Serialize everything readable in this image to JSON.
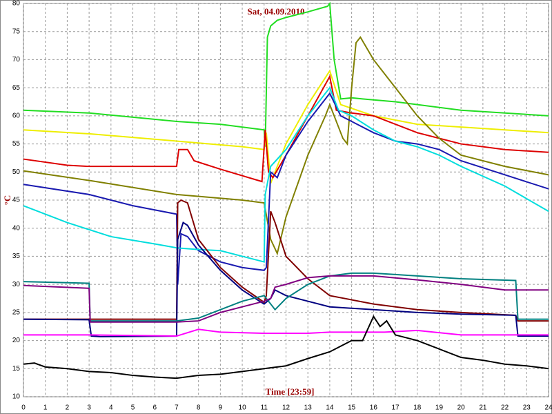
{
  "chart_data": {
    "type": "line",
    "title": "Sat, 04.09.2010",
    "x_label": "Time [23:59]",
    "y_label": "°C",
    "xlim": [
      0,
      24
    ],
    "ylim": [
      10,
      80
    ],
    "xticks": [
      0,
      1,
      2,
      3,
      4,
      5,
      6,
      7,
      8,
      9,
      10,
      11,
      12,
      13,
      14,
      15,
      16,
      17,
      18,
      19,
      20,
      21,
      22,
      23,
      24
    ],
    "yticks": [
      10,
      15,
      20,
      25,
      30,
      35,
      40,
      45,
      50,
      55,
      60,
      65,
      70,
      75,
      80
    ],
    "grid": true,
    "series": [
      {
        "color": "#22dd22",
        "x": [
          0,
          3,
          7,
          9,
          11,
          11.05,
          11.15,
          11.3,
          11.6,
          12,
          13,
          13.9,
          14,
          14.2,
          14.5,
          15,
          15.5,
          17,
          20,
          24
        ],
        "values": [
          61,
          60.5,
          59,
          58.5,
          57.5,
          54.5,
          74,
          76,
          77,
          77.5,
          78.5,
          79.5,
          80,
          70,
          63,
          63.2,
          63,
          62.5,
          61,
          60
        ]
      },
      {
        "color": "#eeee00",
        "x": [
          0,
          3,
          7,
          10,
          11,
          11.1,
          11.3,
          12,
          13,
          14,
          14.5,
          16,
          18,
          20,
          24
        ],
        "values": [
          57.5,
          56.8,
          55.5,
          54.5,
          54,
          57,
          48,
          55,
          62,
          68,
          62,
          60,
          58.5,
          58,
          57
        ]
      },
      {
        "color": "#dd0000",
        "x": [
          0,
          2,
          3,
          7,
          7.1,
          7.5,
          7.8,
          9,
          10.9,
          11.05,
          11.2,
          11.4,
          12,
          13,
          14,
          14.3,
          15,
          16,
          17,
          18,
          20,
          22,
          24
        ],
        "values": [
          52.3,
          51.2,
          51,
          51,
          54,
          54,
          52,
          50.5,
          48.3,
          57.5,
          50,
          49,
          53,
          60,
          67,
          61,
          60.5,
          60,
          58.5,
          57,
          55,
          54,
          53.5
        ]
      },
      {
        "color": "#808000",
        "x": [
          0,
          3,
          7,
          10,
          11,
          11.3,
          11.6,
          12,
          13,
          13.8,
          14,
          14.6,
          14.8,
          15,
          15.2,
          15.4,
          16,
          17,
          18,
          19,
          20,
          22,
          24
        ],
        "values": [
          50.2,
          48.5,
          46,
          45,
          44.5,
          38,
          35.5,
          42,
          53,
          60,
          62,
          56,
          55,
          65,
          73,
          74,
          70,
          65,
          60,
          56,
          53,
          51,
          49.5
        ]
      },
      {
        "color": "#1a1ab0",
        "x": [
          0,
          3,
          5,
          7,
          7.05,
          7.2,
          7.5,
          8,
          9,
          10,
          11,
          11.1,
          11.3,
          11.6,
          12,
          13,
          14,
          14.5,
          15,
          16,
          17,
          18,
          19,
          20,
          22,
          24
        ],
        "values": [
          47.8,
          46,
          44,
          42.5,
          30,
          39,
          38.5,
          36,
          34,
          33,
          32.5,
          33,
          50,
          49,
          53,
          59,
          64,
          60,
          59,
          57,
          55.5,
          55,
          54,
          52,
          49.5,
          47
        ]
      },
      {
        "color": "#00dddd",
        "x": [
          0,
          2,
          4,
          6,
          7,
          8,
          9,
          10,
          11,
          11.05,
          11.3,
          12,
          13,
          14,
          14.4,
          15,
          16,
          17,
          18,
          19,
          20,
          22,
          24
        ],
        "values": [
          44,
          41,
          38.5,
          37.2,
          36.5,
          36.2,
          36,
          35,
          34,
          46,
          51,
          54,
          60,
          65,
          61,
          60,
          57.5,
          55.5,
          54.5,
          53,
          51,
          47.5,
          43
        ]
      },
      {
        "color": "#800000",
        "x": [
          0,
          3,
          7,
          7.05,
          7.2,
          7.5,
          8,
          9,
          10,
          11,
          11.1,
          11.3,
          11.5,
          12,
          13,
          14,
          16,
          18,
          20,
          22.5,
          22.6,
          24
        ],
        "values": [
          23.8,
          23.8,
          23.8,
          44.5,
          45,
          44.5,
          38,
          33,
          29.5,
          26.8,
          28,
          43,
          41,
          35,
          31,
          28,
          26.5,
          25.5,
          25,
          24.5,
          23.5,
          23.5
        ]
      },
      {
        "color": "#000080",
        "x": [
          0,
          3,
          3.1,
          3.5,
          7,
          7.05,
          7.3,
          7.5,
          8,
          9,
          10,
          11,
          11.3,
          11.5,
          12,
          13,
          14,
          16,
          18,
          20,
          22.5,
          22.6,
          24
        ],
        "values": [
          23.8,
          23.7,
          20.8,
          20.7,
          20.8,
          38,
          41,
          40.5,
          37,
          32.5,
          29,
          26.5,
          27.5,
          29,
          28,
          27,
          26,
          25.5,
          25,
          24.7,
          24.5,
          20.8,
          20.8
        ]
      },
      {
        "color": "#008080",
        "x": [
          0,
          3,
          3.05,
          7,
          8,
          9,
          10,
          11,
          11.2,
          11.5,
          12,
          13,
          14,
          15,
          16,
          18,
          20,
          22.5,
          22.6,
          24
        ],
        "values": [
          30.5,
          30.2,
          23.5,
          23.5,
          24,
          25.5,
          27,
          28,
          27,
          25.5,
          27.5,
          30,
          31.5,
          32,
          32,
          31.5,
          31,
          30.7,
          23.8,
          23.8
        ]
      },
      {
        "color": "#800080",
        "x": [
          0,
          3,
          3.05,
          7,
          8,
          9,
          10,
          11,
          11.3,
          11.5,
          12,
          13,
          14,
          16,
          18,
          20,
          22,
          24
        ],
        "values": [
          29.8,
          29.3,
          23.3,
          23.3,
          23.5,
          25,
          26,
          27,
          27.5,
          29.5,
          30,
          31.2,
          31.5,
          31.5,
          30.8,
          30,
          29,
          29
        ]
      },
      {
        "color": "#ff00ff",
        "x": [
          0,
          3,
          7,
          8,
          9,
          11,
          13,
          14,
          15,
          16.5,
          18,
          20,
          24
        ],
        "values": [
          21,
          21,
          20.8,
          22,
          21.5,
          21.3,
          21.3,
          21.5,
          21.5,
          21.5,
          21.8,
          21,
          21
        ]
      },
      {
        "color": "#000000",
        "x": [
          0,
          0.5,
          1,
          2,
          3,
          4,
          5,
          6,
          7,
          8,
          9,
          10,
          11,
          12,
          13,
          14,
          15,
          15.5,
          16,
          16.3,
          16.6,
          17,
          18,
          19,
          20,
          21,
          22,
          23,
          24
        ],
        "values": [
          15.8,
          16,
          15.3,
          15,
          14.5,
          14.3,
          13.8,
          13.5,
          13.3,
          13.8,
          14,
          14.5,
          15,
          15.5,
          16.8,
          18,
          20,
          20,
          24.3,
          22.5,
          23.5,
          21,
          20,
          18.5,
          17,
          16.5,
          15.8,
          15.5,
          15
        ]
      }
    ]
  }
}
